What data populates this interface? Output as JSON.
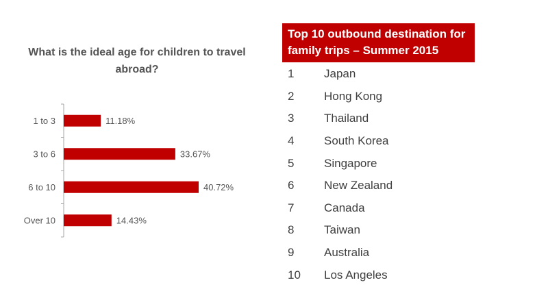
{
  "chart_data": {
    "type": "bar",
    "orientation": "horizontal",
    "title": "What is the ideal age for children to travel abroad?",
    "categories": [
      "1 to 3",
      "3 to 6",
      "6 to 10",
      "Over 10"
    ],
    "values": [
      11.18,
      33.67,
      40.72,
      14.43
    ],
    "value_labels": [
      "11.18%",
      "33.67%",
      "40.72%",
      "14.43%"
    ],
    "unit": "%",
    "xlim": [
      0,
      45
    ],
    "bar_color": "#c00000",
    "grid": false,
    "legend": "none"
  },
  "destinations": {
    "header": "Top 10 outbound destination for family trips – Summer 2015",
    "header_color": "#c00000",
    "items": [
      {
        "rank": "1",
        "name": "Japan"
      },
      {
        "rank": "2",
        "name": "Hong Kong"
      },
      {
        "rank": "3",
        "name": "Thailand"
      },
      {
        "rank": "4",
        "name": "South Korea"
      },
      {
        "rank": "5",
        "name": "Singapore"
      },
      {
        "rank": "6",
        "name": "New Zealand"
      },
      {
        "rank": "7",
        "name": "Canada"
      },
      {
        "rank": "8",
        "name": "Taiwan"
      },
      {
        "rank": "9",
        "name": "Australia"
      },
      {
        "rank": "10",
        "name": "Los Angeles"
      }
    ]
  }
}
